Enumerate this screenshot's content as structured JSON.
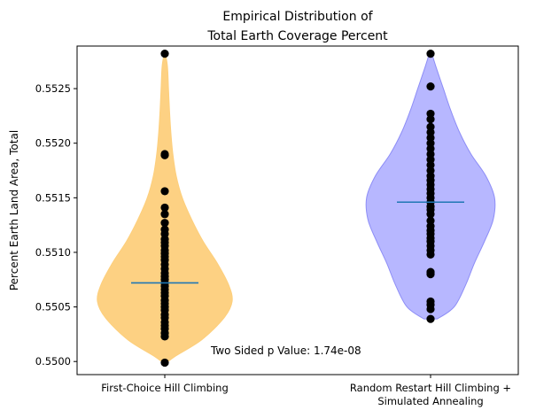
{
  "chart_data": {
    "type": "violin",
    "title_lines": [
      "Empirical Distribution of",
      "Total Earth Coverage Percent"
    ],
    "xlabel": "",
    "ylabel": "Percent Earth Land Area, Total",
    "ylim": [
      0.54988,
      0.55289
    ],
    "yticks": [
      {
        "value": 0.55,
        "label": "0.5500"
      },
      {
        "value": 0.5505,
        "label": "0.5505"
      },
      {
        "value": 0.551,
        "label": "0.5510"
      },
      {
        "value": 0.5515,
        "label": "0.5515"
      },
      {
        "value": 0.552,
        "label": "0.5520"
      },
      {
        "value": 0.5525,
        "label": "0.5525"
      }
    ],
    "grid": false,
    "legend": "none",
    "annotation": "Two Sided p Value: 1.74e-08",
    "series": [
      {
        "label_lines": [
          "First-Choice Hill Climbing"
        ],
        "fill": "#fdcf7c",
        "edge": "#fdcf7c",
        "median": 0.55072,
        "range": [
          0.54999,
          0.55282
        ],
        "density": [
          [
            0.54999,
            0.03
          ],
          [
            0.55005,
            0.16
          ],
          [
            0.5502,
            0.55
          ],
          [
            0.5504,
            0.88
          ],
          [
            0.55055,
            1.0
          ],
          [
            0.5507,
            0.95
          ],
          [
            0.5509,
            0.78
          ],
          [
            0.5511,
            0.57
          ],
          [
            0.5513,
            0.4
          ],
          [
            0.5515,
            0.26
          ],
          [
            0.5517,
            0.17
          ],
          [
            0.5519,
            0.12
          ],
          [
            0.5521,
            0.09
          ],
          [
            0.5523,
            0.07
          ],
          [
            0.5525,
            0.055
          ],
          [
            0.5527,
            0.04
          ],
          [
            0.55282,
            0.01
          ]
        ],
        "points": [
          0.54999,
          0.55023,
          0.55026,
          0.5503,
          0.55033,
          0.55036,
          0.5504,
          0.55043,
          0.55047,
          0.5505,
          0.55053,
          0.55056,
          0.5506,
          0.55063,
          0.55066,
          0.55069,
          0.55072,
          0.55075,
          0.55078,
          0.55081,
          0.55085,
          0.55089,
          0.55093,
          0.55096,
          0.55099,
          0.55102,
          0.55106,
          0.55109,
          0.55112,
          0.55117,
          0.55121,
          0.55127,
          0.55135,
          0.55141,
          0.55156,
          0.55189,
          0.5519,
          0.55282
        ]
      },
      {
        "label_lines": [
          "Random Restart Hill Climbing +",
          "Simulated Annealing"
        ],
        "fill": "#b3b3ff",
        "edge": "#8d8df6",
        "median": 0.55146,
        "range": [
          0.55039,
          0.55282
        ],
        "density": [
          [
            0.55039,
            0.1
          ],
          [
            0.5505,
            0.35
          ],
          [
            0.5507,
            0.52
          ],
          [
            0.5509,
            0.65
          ],
          [
            0.5511,
            0.8
          ],
          [
            0.5513,
            0.93
          ],
          [
            0.5515,
            0.95
          ],
          [
            0.5517,
            0.82
          ],
          [
            0.5519,
            0.6
          ],
          [
            0.5521,
            0.43
          ],
          [
            0.5523,
            0.3
          ],
          [
            0.5525,
            0.19
          ],
          [
            0.5527,
            0.08
          ],
          [
            0.55282,
            0.02
          ]
        ],
        "points": [
          0.55039,
          0.55048,
          0.55052,
          0.55055,
          0.5508,
          0.55082,
          0.55098,
          0.55102,
          0.55106,
          0.5511,
          0.55113,
          0.55117,
          0.5512,
          0.55124,
          0.55129,
          0.55135,
          0.55139,
          0.55142,
          0.55146,
          0.5515,
          0.55154,
          0.55158,
          0.55162,
          0.55166,
          0.5517,
          0.55175,
          0.5518,
          0.55185,
          0.5519,
          0.55195,
          0.552,
          0.55205,
          0.5521,
          0.55215,
          0.55222,
          0.55227,
          0.55252,
          0.55282
        ]
      }
    ]
  }
}
